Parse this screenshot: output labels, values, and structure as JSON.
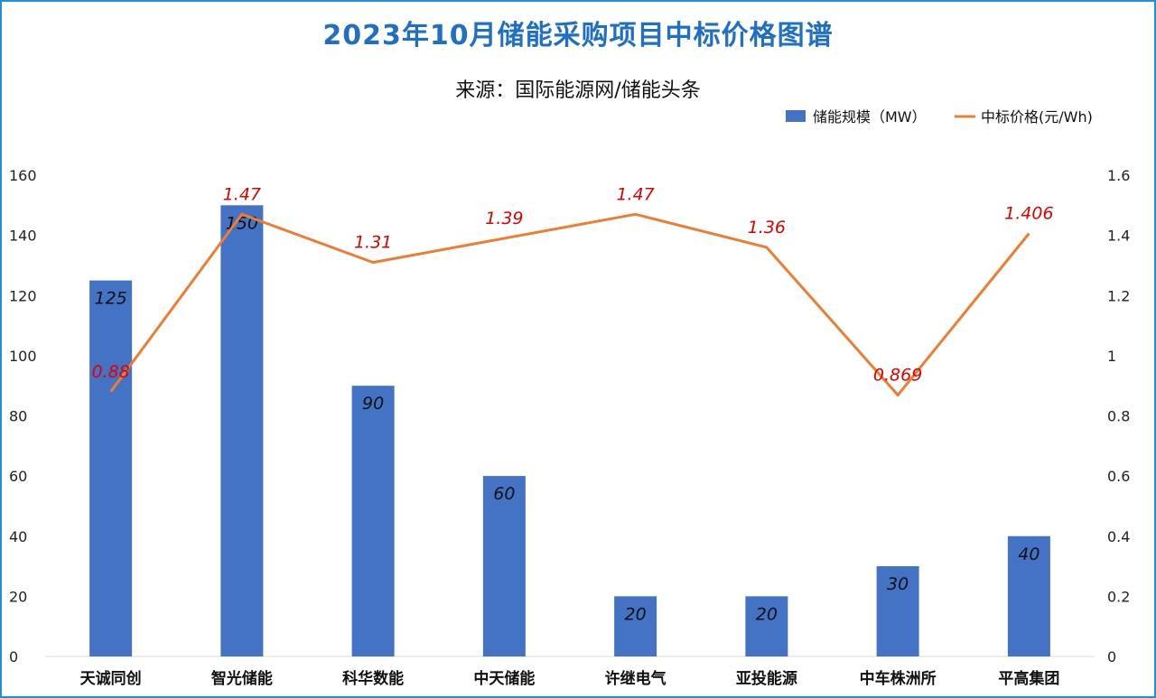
{
  "chart_data": {
    "type": "bar",
    "title": "2023年10月储能采购项目中标价格图谱",
    "subtitle": "来源：国际能源网/储能头条",
    "categories": [
      "天诚同创",
      "智光储能",
      "科华数能",
      "中天储能",
      "许继电气",
      "亚投能源",
      "中车株洲所",
      "平高集团"
    ],
    "series": [
      {
        "name": "储能规模（MW）",
        "type": "bar",
        "axis": "left",
        "color": "#4472c4",
        "values": [
          125,
          150,
          90,
          60,
          20,
          20,
          30,
          40
        ],
        "labels": [
          "125",
          "150",
          "90",
          "60",
          "20",
          "20",
          "30",
          "40"
        ]
      },
      {
        "name": "中标价格(元/Wh)",
        "type": "line",
        "axis": "right",
        "color": "#ed7d31",
        "values": [
          0.88,
          1.47,
          1.31,
          1.39,
          1.47,
          1.36,
          0.869,
          1.406
        ],
        "labels": [
          "0.88",
          "1.47",
          "1.31",
          "1.39",
          "1.47",
          "1.36",
          "0.869",
          "1.406"
        ]
      }
    ],
    "y_left": {
      "ylim": [
        0,
        160
      ],
      "ticks": [
        "0",
        "20",
        "40",
        "60",
        "80",
        "100",
        "120",
        "140",
        "160"
      ]
    },
    "y_right": {
      "ylim": [
        0,
        1.6
      ],
      "ticks": [
        "0",
        "0.2",
        "0.4",
        "0.6",
        "0.8",
        "1",
        "1.2",
        "1.4",
        "1.6"
      ]
    },
    "legend_position": "top-right",
    "grid": false,
    "label_color": "#e00000"
  }
}
